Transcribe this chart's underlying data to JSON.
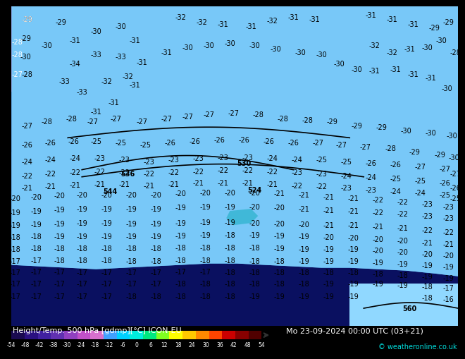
{
  "title_left": "Height/Temp. 500 hPa [gdmp][°C] ICON-EU",
  "title_right": "Mo 23-09-2024 00:00 UTC (03+21)",
  "copyright": "© weatheronline.co.uk",
  "colorbar_ticks": [
    -54,
    -48,
    -42,
    -38,
    -30,
    -24,
    -18,
    -12,
    -6,
    0,
    6,
    12,
    18,
    24,
    30,
    36,
    42,
    48,
    54
  ],
  "colorbar_colors": [
    "#1a0a50",
    "#2a1080",
    "#4020a0",
    "#6030b0",
    "#9040c0",
    "#c050c8",
    "#d870cc",
    "#40a0ff",
    "#00d0ff",
    "#00eedd",
    "#00e880",
    "#80ff20",
    "#ffff00",
    "#ffc800",
    "#ff8800",
    "#ff4400",
    "#cc0000",
    "#880000",
    "#500000"
  ],
  "bg_color": "#000000",
  "map_region_colors": {
    "deep_blue_cold": "#0a1060",
    "medium_blue": "#2050a8",
    "blue": "#3070c0",
    "light_blue1": "#4090d8",
    "light_blue2": "#50b0e8",
    "cyan_blue": "#70c8f0",
    "very_light_blue": "#90d8f8",
    "lightest_blue": "#b0e8ff",
    "pink_warm": "#e060c0",
    "magenta": "#d040b0",
    "gray_neutral": "#a8a8b8"
  }
}
